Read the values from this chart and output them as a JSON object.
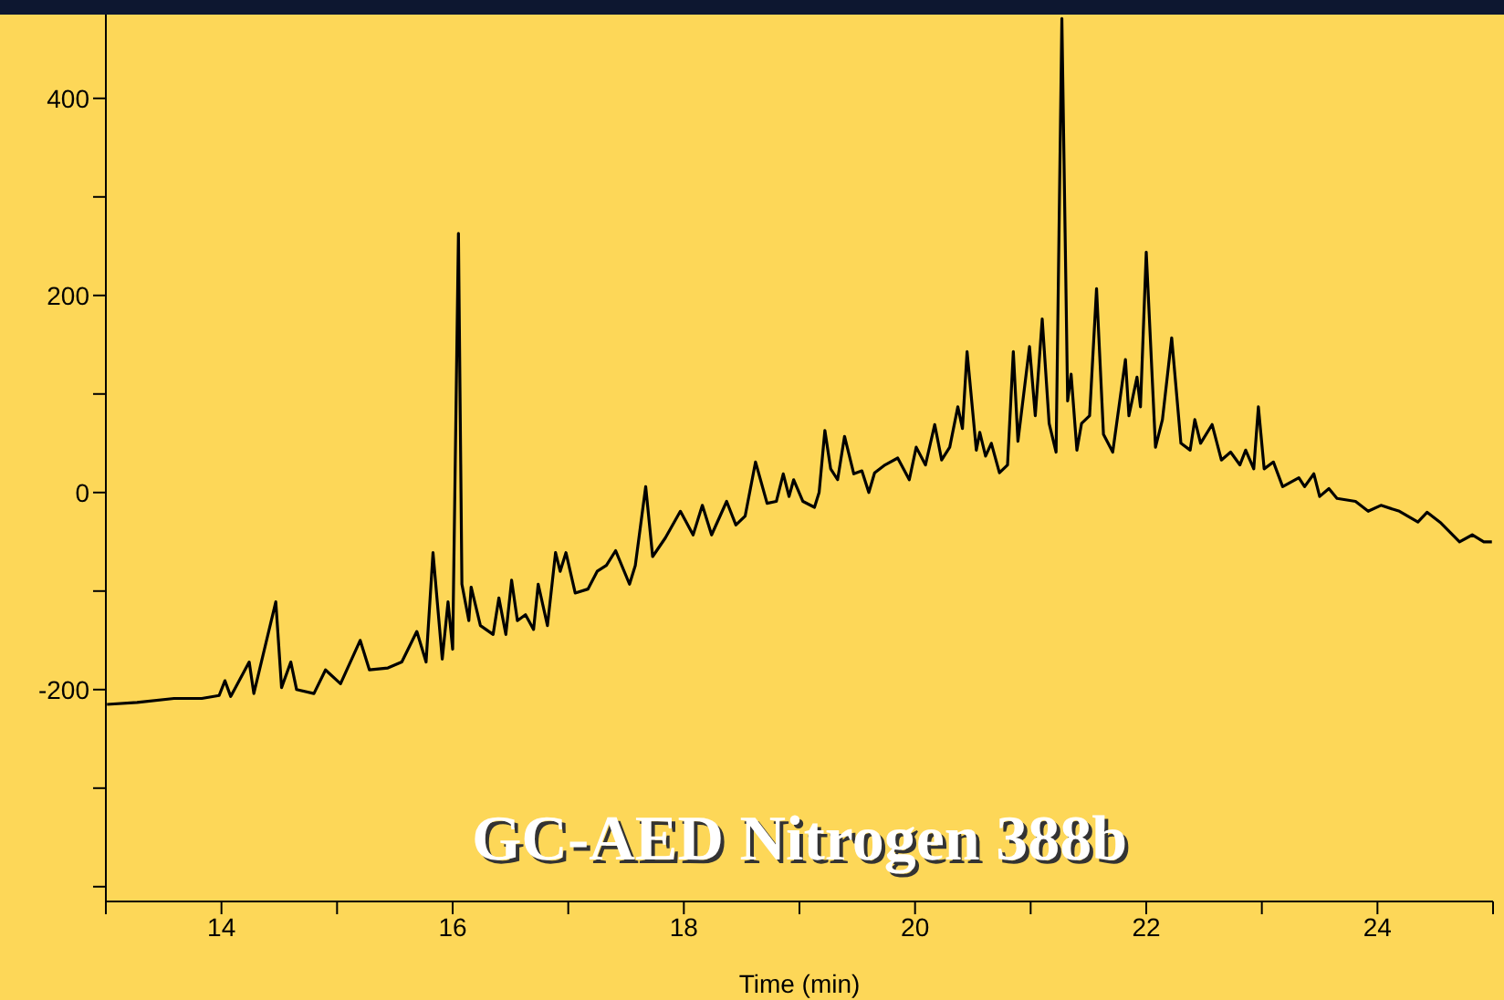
{
  "chart_data": {
    "type": "line",
    "xlabel": "Time (min)",
    "annotations": [
      "GC-AED Nitrogen 388b"
    ],
    "xlim": [
      13,
      25
    ],
    "xticks": [
      {
        "value": 13,
        "label": null
      },
      14,
      {
        "value": 15,
        "label": null
      },
      16,
      {
        "value": 17,
        "label": null
      },
      18,
      {
        "value": 19,
        "label": null
      },
      20,
      {
        "value": 21,
        "label": null
      },
      22,
      {
        "value": 23,
        "label": null
      },
      24,
      {
        "value": 25,
        "label": null
      }
    ],
    "ylim": [
      -415,
      485
    ],
    "yticks": [
      {
        "value": -400,
        "label": null
      },
      {
        "value": -300,
        "label": null
      },
      -200,
      {
        "value": -100,
        "label": null
      },
      0,
      {
        "value": 100,
        "label": null
      },
      200,
      {
        "value": 300,
        "label": null
      },
      400
    ],
    "marker": "none",
    "line_style": "solid",
    "series": [
      {
        "color": "#000000",
        "x": [
          13.01,
          13.27,
          13.59,
          13.83,
          13.98,
          14.03,
          14.08,
          14.24,
          14.28,
          14.47,
          14.52,
          14.6,
          14.65,
          14.8,
          14.9,
          15.03,
          15.2,
          15.28,
          15.44,
          15.56,
          15.69,
          15.77,
          15.83,
          15.91,
          15.96,
          16.0,
          16.05,
          16.08,
          16.14,
          16.16,
          16.24,
          16.35,
          16.4,
          16.46,
          16.51,
          16.56,
          16.63,
          16.7,
          16.74,
          16.82,
          16.89,
          16.93,
          16.98,
          17.06,
          17.17,
          17.25,
          17.33,
          17.41,
          17.53,
          17.58,
          17.67,
          17.73,
          17.84,
          17.97,
          18.08,
          18.16,
          18.24,
          18.37,
          18.45,
          18.53,
          18.62,
          18.72,
          18.8,
          18.86,
          18.91,
          18.95,
          19.03,
          19.13,
          19.17,
          19.22,
          19.27,
          19.33,
          19.39,
          19.47,
          19.54,
          19.6,
          19.65,
          19.74,
          19.85,
          19.95,
          20.01,
          20.09,
          20.17,
          20.23,
          20.3,
          20.37,
          20.41,
          20.45,
          20.53,
          20.56,
          20.61,
          20.66,
          20.73,
          20.8,
          20.85,
          20.89,
          20.99,
          21.04,
          21.1,
          21.16,
          21.22,
          21.27,
          21.32,
          21.35,
          21.4,
          21.44,
          21.51,
          21.57,
          21.63,
          21.71,
          21.82,
          21.85,
          21.92,
          21.95,
          22.0,
          22.08,
          22.14,
          22.22,
          22.3,
          22.38,
          22.42,
          22.47,
          22.57,
          22.65,
          22.73,
          22.81,
          22.86,
          22.93,
          22.97,
          23.02,
          23.1,
          23.18,
          23.32,
          23.37,
          23.45,
          23.5,
          23.58,
          23.65,
          23.81,
          23.92,
          24.03,
          24.19,
          24.35,
          24.43,
          24.55,
          24.71,
          24.82,
          24.92,
          24.99
        ],
        "values": [
          -215,
          -213,
          -209,
          -209,
          -206,
          -191,
          -207,
          -172,
          -204,
          -111,
          -198,
          -172,
          -200,
          -204,
          -180,
          -194,
          -150,
          -180,
          -178,
          -172,
          -141,
          -172,
          -61,
          -169,
          -111,
          -159,
          263,
          -93,
          -130,
          -96,
          -135,
          -144,
          -107,
          -144,
          -89,
          -130,
          -124,
          -139,
          -93,
          -135,
          -61,
          -80,
          -61,
          -102,
          -98,
          -80,
          -74,
          -59,
          -93,
          -74,
          6,
          -65,
          -46,
          -19,
          -43,
          -13,
          -43,
          -9,
          -33,
          -24,
          31,
          -11,
          -9,
          19,
          -4,
          13,
          -9,
          -15,
          0,
          63,
          24,
          13,
          57,
          19,
          22,
          0,
          20,
          28,
          35,
          13,
          46,
          28,
          69,
          33,
          46,
          87,
          65,
          143,
          43,
          61,
          37,
          50,
          20,
          28,
          143,
          52,
          148,
          78,
          176,
          70,
          41,
          481,
          93,
          120,
          43,
          70,
          78,
          207,
          59,
          41,
          135,
          78,
          117,
          87,
          244,
          46,
          74,
          157,
          50,
          43,
          74,
          50,
          69,
          33,
          41,
          28,
          43,
          24,
          87,
          24,
          31,
          6,
          15,
          6,
          19,
          -4,
          4,
          -6,
          -9,
          -19,
          -13,
          -19,
          -30,
          -20,
          -31,
          -50,
          -43,
          -50,
          -50
        ]
      }
    ]
  }
}
